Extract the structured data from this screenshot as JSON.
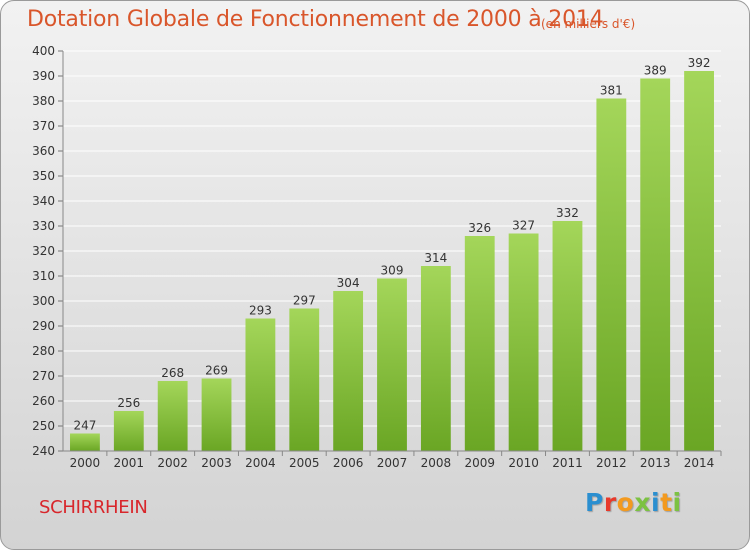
{
  "header": {
    "title": "Dotation Globale de Fonctionnement de 2000 à 2014",
    "unit": "(en milliers d'€)"
  },
  "footer": {
    "commune": "SCHIRRHEIN",
    "logo_text": "Proxiti",
    "logo_colors": [
      "#2b8fd0",
      "#e8392b",
      "#f39a1f",
      "#7cc242",
      "#2b8fd0",
      "#f39a1f",
      "#7cc242"
    ]
  },
  "colors": {
    "bar_light": "#a4d65a",
    "bar_dark": "#6aa624",
    "title": "#d9562b",
    "commune": "#d8262b",
    "grid": "#ffffff"
  },
  "chart_data": {
    "type": "bar",
    "title": "Dotation Globale de Fonctionnement de 2000 à 2014",
    "subtitle": "(en milliers d'€)",
    "categories": [
      "2000",
      "2001",
      "2002",
      "2003",
      "2004",
      "2005",
      "2006",
      "2007",
      "2008",
      "2009",
      "2010",
      "2011",
      "2012",
      "2013",
      "2014"
    ],
    "values": [
      247,
      256,
      268,
      269,
      293,
      297,
      304,
      309,
      314,
      326,
      327,
      332,
      381,
      389,
      392
    ],
    "ylim": [
      240,
      400
    ],
    "ytick_step": 10,
    "grid": true,
    "xlabel": "",
    "ylabel": ""
  }
}
